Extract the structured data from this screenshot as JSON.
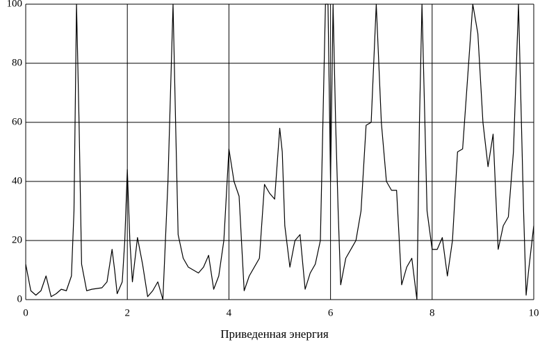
{
  "chart_data": {
    "type": "line",
    "x_label": "Приведенная энергия",
    "x": [
      0,
      0.1,
      0.2,
      0.3,
      0.4,
      0.5,
      0.6,
      0.7,
      0.8,
      0.9,
      0.95,
      1.0,
      1.05,
      1.1,
      1.2,
      1.3,
      1.5,
      1.6,
      1.7,
      1.75,
      1.8,
      1.9,
      1.95,
      2.0,
      2.05,
      2.1,
      2.2,
      2.3,
      2.4,
      2.5,
      2.6,
      2.7,
      2.8,
      2.9,
      2.95,
      3.0,
      3.1,
      3.2,
      3.4,
      3.5,
      3.6,
      3.7,
      3.8,
      3.9,
      4.0,
      4.1,
      4.2,
      4.3,
      4.4,
      4.6,
      4.7,
      4.8,
      4.9,
      5.0,
      5.05,
      5.1,
      5.2,
      5.3,
      5.4,
      5.5,
      5.6,
      5.7,
      5.8,
      5.9,
      5.95,
      6.0,
      6.05,
      6.1,
      6.15,
      6.2,
      6.3,
      6.5,
      6.6,
      6.7,
      6.8,
      6.9,
      7.0,
      7.1,
      7.2,
      7.3,
      7.4,
      7.5,
      7.6,
      7.7,
      7.75,
      7.8,
      7.9,
      8.0,
      8.1,
      8.2,
      8.3,
      8.4,
      8.5,
      8.6,
      8.8,
      8.9,
      9.0,
      9.1,
      9.2,
      9.3,
      9.4,
      9.5,
      9.6,
      9.7,
      9.8,
      9.85,
      9.9,
      10
    ],
    "series": [
      {
        "color": "#000000",
        "values": [
          12,
          3,
          1.5,
          3,
          8,
          1,
          2,
          3.5,
          3,
          8,
          30,
          100,
          60,
          12,
          3,
          3.5,
          4,
          6,
          17,
          10,
          2,
          6,
          20,
          44,
          20,
          6,
          21,
          12,
          1,
          3,
          6,
          0,
          40,
          100,
          60,
          22,
          14,
          11,
          9,
          11,
          15,
          3.5,
          8,
          20,
          51,
          40,
          35,
          3,
          8,
          14,
          39,
          36,
          34,
          58,
          50,
          25,
          11,
          20,
          22,
          3.5,
          9,
          12,
          20,
          100,
          100,
          40,
          100,
          60,
          30,
          5,
          14,
          20,
          30,
          59,
          60,
          100,
          60,
          40,
          37,
          37,
          5,
          11,
          14,
          0,
          60,
          100,
          30,
          17,
          17,
          21,
          8,
          20,
          50,
          51,
          100,
          90,
          60,
          45,
          56,
          17,
          25,
          28,
          50,
          100,
          30,
          1.5,
          10,
          25
        ]
      }
    ],
    "xlim": [
      0,
      10
    ],
    "xticks": [
      0,
      2,
      4,
      6,
      8,
      10
    ],
    "ylim": [
      0,
      100
    ],
    "yticks": [
      0,
      20,
      40,
      60,
      80,
      100
    ],
    "grid": true
  }
}
